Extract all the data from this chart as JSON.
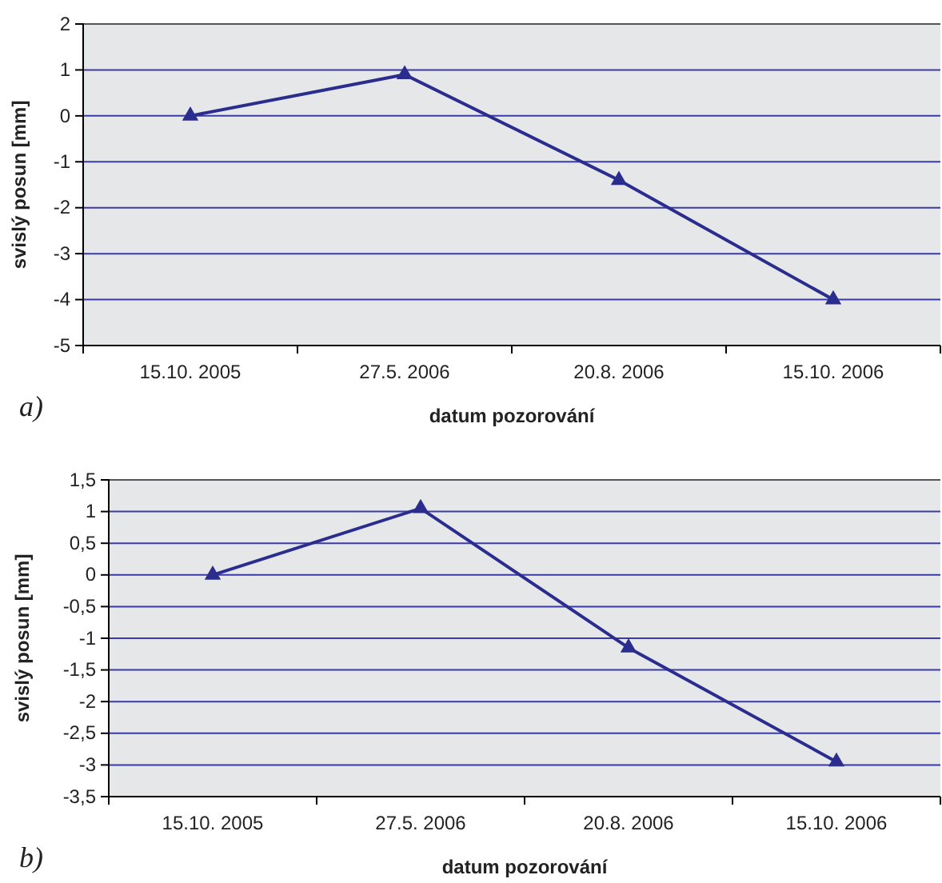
{
  "chart_data": [
    {
      "type": "line",
      "xlabel": "datum pozorování",
      "ylabel": "svislý posun [mm]",
      "categories": [
        "15.10. 2005",
        "27.5. 2006",
        "20.8. 2006",
        "15.10. 2006"
      ],
      "series": [
        {
          "color": "#2b2d8e",
          "values": [
            0,
            0.9,
            -1.4,
            -4.0
          ]
        }
      ],
      "ylim": [
        -5,
        2
      ],
      "yticks": [
        -5,
        -4,
        -3,
        -2,
        -1,
        0,
        1,
        2
      ],
      "grid": "y",
      "marker": "triangle",
      "line_style": "solid",
      "annotations": [
        "a)"
      ]
    },
    {
      "type": "line",
      "xlabel": "datum pozorování",
      "ylabel": "svislý posun [mm]",
      "categories": [
        "15.10. 2005",
        "27.5. 2006",
        "20.8. 2006",
        "15.10. 2006"
      ],
      "series": [
        {
          "color": "#2b2d8e",
          "values": [
            0,
            1.05,
            -1.15,
            -2.95
          ]
        }
      ],
      "ylim": [
        -3.5,
        1.5
      ],
      "yticks": [
        {
          "value": -3.5,
          "label": "-3,5"
        },
        -3,
        {
          "value": -2.5,
          "label": "-2,5"
        },
        -2,
        {
          "value": -1.5,
          "label": "-1,5"
        },
        -1,
        {
          "value": -0.5,
          "label": "-0,5"
        },
        0,
        {
          "value": 0.5,
          "label": "0,5"
        },
        1,
        {
          "value": 1.5,
          "label": "1,5"
        }
      ],
      "grid": "y",
      "marker": "triangle",
      "line_style": "solid",
      "annotations": [
        "b)"
      ]
    }
  ]
}
